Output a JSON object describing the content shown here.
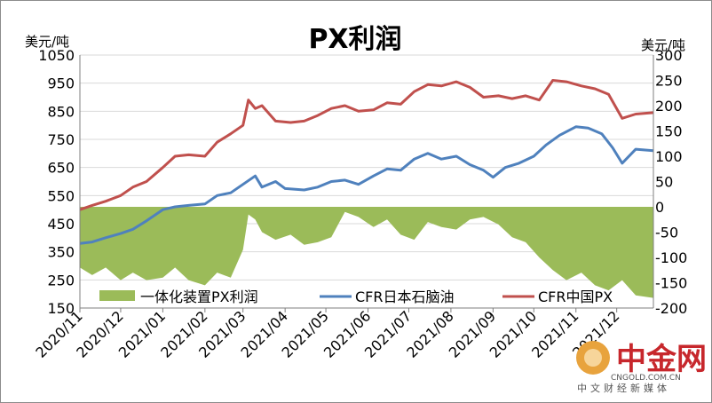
{
  "chart_data": {
    "type": "area+line",
    "title": "PX利润",
    "y_left_unit": "美元/吨",
    "y_right_unit": "美元/吨",
    "y_left_ticks": [
      "1050",
      "950",
      "850",
      "750",
      "650",
      "550",
      "450",
      "350",
      "250",
      "150"
    ],
    "y_right_ticks": [
      "300",
      "250",
      "200",
      "150",
      "100",
      "50",
      "0",
      "-50",
      "-100",
      "-150",
      "-200"
    ],
    "ylim_left": [
      150,
      1050
    ],
    "ylim_right": [
      -200,
      300
    ],
    "x_ticks": [
      "2020/11",
      "2020/12",
      "2021/01",
      "2021/02",
      "2021/03",
      "2021/04",
      "2021/05",
      "2021/06",
      "2021/07",
      "2021/08",
      "2021/09",
      "2021/10",
      "2021/11",
      "2021/12"
    ],
    "x_range": [
      "2020-11-01",
      "2021-12-28"
    ],
    "legend_position": "bottom-inside",
    "series": [
      {
        "name": "一体化装置PX利润",
        "type": "area",
        "axis": "right",
        "color": "#9bbb59",
        "data": [
          [
            "2020-11-01",
            -120
          ],
          [
            "2020-11-10",
            -135
          ],
          [
            "2020-11-20",
            -120
          ],
          [
            "2020-12-01",
            -145
          ],
          [
            "2020-12-10",
            -130
          ],
          [
            "2020-12-20",
            -145
          ],
          [
            "2021-01-01",
            -140
          ],
          [
            "2021-01-10",
            -120
          ],
          [
            "2021-01-20",
            -145
          ],
          [
            "2021-02-01",
            -155
          ],
          [
            "2021-02-10",
            -130
          ],
          [
            "2021-02-20",
            -140
          ],
          [
            "2021-03-01",
            -85
          ],
          [
            "2021-03-05",
            -15
          ],
          [
            "2021-03-10",
            -25
          ],
          [
            "2021-03-15",
            -50
          ],
          [
            "2021-03-25",
            -65
          ],
          [
            "2021-04-05",
            -55
          ],
          [
            "2021-04-15",
            -75
          ],
          [
            "2021-04-25",
            -70
          ],
          [
            "2021-05-05",
            -60
          ],
          [
            "2021-05-15",
            -10
          ],
          [
            "2021-05-25",
            -20
          ],
          [
            "2021-06-05",
            -40
          ],
          [
            "2021-06-15",
            -25
          ],
          [
            "2021-06-25",
            -55
          ],
          [
            "2021-07-05",
            -65
          ],
          [
            "2021-07-15",
            -30
          ],
          [
            "2021-07-25",
            -40
          ],
          [
            "2021-08-05",
            -45
          ],
          [
            "2021-08-15",
            -25
          ],
          [
            "2021-08-25",
            -20
          ],
          [
            "2021-09-05",
            -35
          ],
          [
            "2021-09-15",
            -60
          ],
          [
            "2021-09-25",
            -70
          ],
          [
            "2021-10-05",
            -100
          ],
          [
            "2021-10-15",
            -125
          ],
          [
            "2021-10-25",
            -145
          ],
          [
            "2021-11-05",
            -130
          ],
          [
            "2021-11-15",
            -155
          ],
          [
            "2021-11-25",
            -165
          ],
          [
            "2021-12-05",
            -145
          ],
          [
            "2021-12-15",
            -175
          ],
          [
            "2021-12-28",
            -180
          ]
        ]
      },
      {
        "name": "CFR日本石脑油",
        "type": "line",
        "axis": "left",
        "color": "#4f81bd",
        "data": [
          [
            "2020-11-01",
            380
          ],
          [
            "2020-11-10",
            385
          ],
          [
            "2020-11-20",
            400
          ],
          [
            "2020-12-01",
            415
          ],
          [
            "2020-12-10",
            430
          ],
          [
            "2020-12-20",
            460
          ],
          [
            "2021-01-01",
            500
          ],
          [
            "2021-01-10",
            510
          ],
          [
            "2021-01-20",
            515
          ],
          [
            "2021-02-01",
            520
          ],
          [
            "2021-02-10",
            550
          ],
          [
            "2021-02-20",
            560
          ],
          [
            "2021-03-01",
            590
          ],
          [
            "2021-03-10",
            620
          ],
          [
            "2021-03-15",
            580
          ],
          [
            "2021-03-25",
            600
          ],
          [
            "2021-04-01",
            575
          ],
          [
            "2021-04-15",
            570
          ],
          [
            "2021-04-25",
            580
          ],
          [
            "2021-05-05",
            600
          ],
          [
            "2021-05-15",
            605
          ],
          [
            "2021-05-25",
            590
          ],
          [
            "2021-06-05",
            620
          ],
          [
            "2021-06-15",
            645
          ],
          [
            "2021-06-25",
            640
          ],
          [
            "2021-07-05",
            680
          ],
          [
            "2021-07-15",
            700
          ],
          [
            "2021-07-25",
            680
          ],
          [
            "2021-08-05",
            690
          ],
          [
            "2021-08-15",
            660
          ],
          [
            "2021-08-25",
            640
          ],
          [
            "2021-09-01",
            615
          ],
          [
            "2021-09-10",
            650
          ],
          [
            "2021-09-20",
            665
          ],
          [
            "2021-10-01",
            690
          ],
          [
            "2021-10-10",
            730
          ],
          [
            "2021-10-20",
            765
          ],
          [
            "2021-11-01",
            795
          ],
          [
            "2021-11-10",
            790
          ],
          [
            "2021-11-20",
            770
          ],
          [
            "2021-11-28",
            720
          ],
          [
            "2021-12-05",
            665
          ],
          [
            "2021-12-15",
            715
          ],
          [
            "2021-12-28",
            710
          ]
        ]
      },
      {
        "name": "CFR中国PX",
        "type": "line",
        "axis": "left",
        "color": "#c0504d",
        "data": [
          [
            "2020-11-01",
            500
          ],
          [
            "2020-11-10",
            515
          ],
          [
            "2020-11-20",
            530
          ],
          [
            "2020-12-01",
            550
          ],
          [
            "2020-12-10",
            580
          ],
          [
            "2020-12-20",
            600
          ],
          [
            "2021-01-01",
            650
          ],
          [
            "2021-01-10",
            690
          ],
          [
            "2021-01-20",
            695
          ],
          [
            "2021-02-01",
            690
          ],
          [
            "2021-02-10",
            740
          ],
          [
            "2021-02-20",
            770
          ],
          [
            "2021-03-01",
            800
          ],
          [
            "2021-03-05",
            890
          ],
          [
            "2021-03-10",
            860
          ],
          [
            "2021-03-15",
            870
          ],
          [
            "2021-03-25",
            815
          ],
          [
            "2021-04-05",
            810
          ],
          [
            "2021-04-15",
            815
          ],
          [
            "2021-04-25",
            835
          ],
          [
            "2021-05-05",
            860
          ],
          [
            "2021-05-15",
            870
          ],
          [
            "2021-05-25",
            850
          ],
          [
            "2021-06-05",
            855
          ],
          [
            "2021-06-15",
            880
          ],
          [
            "2021-06-25",
            875
          ],
          [
            "2021-07-05",
            920
          ],
          [
            "2021-07-15",
            945
          ],
          [
            "2021-07-25",
            940
          ],
          [
            "2021-08-05",
            955
          ],
          [
            "2021-08-15",
            935
          ],
          [
            "2021-08-25",
            900
          ],
          [
            "2021-09-05",
            905
          ],
          [
            "2021-09-15",
            895
          ],
          [
            "2021-09-25",
            905
          ],
          [
            "2021-10-05",
            890
          ],
          [
            "2021-10-15",
            960
          ],
          [
            "2021-10-25",
            955
          ],
          [
            "2021-11-05",
            940
          ],
          [
            "2021-11-15",
            930
          ],
          [
            "2021-11-25",
            910
          ],
          [
            "2021-12-05",
            825
          ],
          [
            "2021-12-15",
            840
          ],
          [
            "2021-12-28",
            845
          ]
        ]
      }
    ]
  },
  "watermark": {
    "brand": "中金网",
    "url": "CNGOLD.COM.CN",
    "tagline": "中文财经新媒体"
  }
}
